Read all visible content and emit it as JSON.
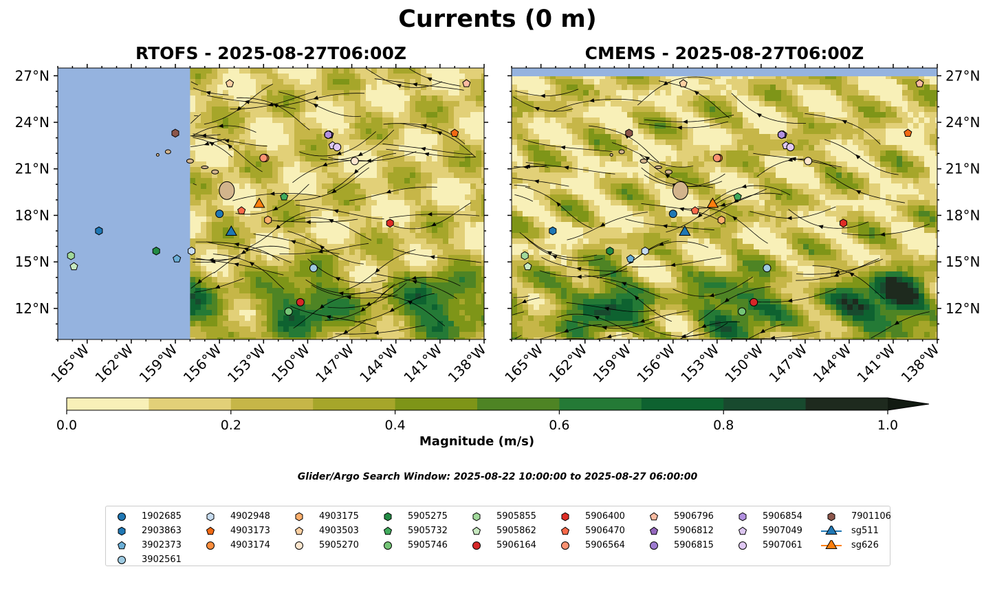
{
  "figure": {
    "title": "Currents (0 m)",
    "subtitle": "Glider/Argo Search Window: 2025-08-22 10:00:00 to 2025-08-27 06:00:00",
    "colorbar_label": "Magnitude (m/s)"
  },
  "chart_data": [
    {
      "type": "heatmap",
      "panel": "left",
      "title": "RTOFS - 2025-08-27T06:00Z",
      "xlabel": "",
      "ylabel": "",
      "xlim": [
        -167,
        -138
      ],
      "ylim": [
        10,
        27.5
      ],
      "xticks": [
        "165°W",
        "162°W",
        "159°W",
        "156°W",
        "153°W",
        "150°W",
        "147°W",
        "144°W",
        "141°W",
        "138°W"
      ],
      "yticks": [
        "12°N",
        "15°N",
        "18°N",
        "21°N",
        "24°N",
        "27°N"
      ],
      "note": "model domain begins at ~158°W; area west shown as no-data"
    },
    {
      "type": "heatmap",
      "panel": "right",
      "title": "CMEMS - 2025-08-27T06:00Z",
      "xlabel": "",
      "ylabel": "",
      "xlim": [
        -167,
        -138
      ],
      "ylim": [
        10,
        27.5
      ],
      "xticks": [
        "165°W",
        "162°W",
        "159°W",
        "156°W",
        "153°W",
        "150°W",
        "147°W",
        "144°W",
        "141°W",
        "138°W"
      ],
      "yticks": [
        "12°N",
        "15°N",
        "18°N",
        "21°N",
        "24°N",
        "27°N"
      ]
    }
  ],
  "colorbar": {
    "levels": [
      0.0,
      0.1,
      0.2,
      0.3,
      0.4,
      0.5,
      0.6,
      0.7,
      0.8,
      0.9,
      1.0
    ],
    "colors": [
      "#f8f0b8",
      "#e2d078",
      "#c6b648",
      "#a6a62a",
      "#7e9518",
      "#4e8424",
      "#247a36",
      "#0e6230",
      "#184a2e",
      "#1e2a1e"
    ],
    "tick_labels": [
      "0.0",
      "0.2",
      "0.4",
      "0.6",
      "0.8",
      "1.0"
    ],
    "ticks": [
      0.0,
      0.2,
      0.4,
      0.6,
      0.8,
      1.0
    ]
  },
  "floats": [
    {
      "id": "1902685",
      "marker": "circle",
      "color": "#1f77b4",
      "lon": -156.0,
      "lat": 18.1
    },
    {
      "id": "2903863",
      "marker": "hexagon",
      "color": "#1f77b4",
      "lon": -164.2,
      "lat": 17.0
    },
    {
      "id": "3902373",
      "marker": "pentagon",
      "color": "#6baed6",
      "lon": -158.9,
      "lat": 15.2
    },
    {
      "id": "3902561",
      "marker": "circle",
      "color": "#9ecae1",
      "lon": -149.6,
      "lat": 14.6
    },
    {
      "id": "4902948",
      "marker": "hexagon",
      "color": "#c6dbef",
      "lon": -157.9,
      "lat": 15.7
    },
    {
      "id": "4903173",
      "marker": "pentagon",
      "color": "#f16913",
      "lon": -140.0,
      "lat": 23.3
    },
    {
      "id": "4903174",
      "marker": "circle",
      "color": "#fd8d3c",
      "lon": -152.9,
      "lat": 21.7
    },
    {
      "id": "4903175",
      "marker": "hexagon",
      "color": "#fdae6b",
      "lon": -152.7,
      "lat": 17.7
    },
    {
      "id": "4903503",
      "marker": "pentagon",
      "color": "#fdd0a2",
      "lon": -155.3,
      "lat": 26.5
    },
    {
      "id": "5905270",
      "marker": "circle",
      "color": "#fee6ce",
      "lon": -146.8,
      "lat": 21.5
    },
    {
      "id": "5905275",
      "marker": "hexagon",
      "color": "#238b45",
      "lon": -160.3,
      "lat": 15.7
    },
    {
      "id": "5905732",
      "marker": "pentagon",
      "color": "#41ab5d",
      "lon": -151.6,
      "lat": 19.2
    },
    {
      "id": "5905746",
      "marker": "circle",
      "color": "#74c476",
      "lon": -151.3,
      "lat": 11.8
    },
    {
      "id": "5905855",
      "marker": "hexagon",
      "color": "#a1d99b",
      "lon": -166.1,
      "lat": 15.4
    },
    {
      "id": "5905862",
      "marker": "pentagon",
      "color": "#c7e9c0",
      "lon": -165.9,
      "lat": 14.7
    },
    {
      "id": "5906164",
      "marker": "circle",
      "color": "#d62728",
      "lon": -150.5,
      "lat": 12.4
    },
    {
      "id": "5906400",
      "marker": "hexagon",
      "color": "#de2d26",
      "lon": -144.4,
      "lat": 17.5
    },
    {
      "id": "5906470",
      "marker": "pentagon",
      "color": "#fb6a4a",
      "lon": -154.5,
      "lat": 18.3
    },
    {
      "id": "5906564",
      "marker": "circle",
      "color": "#fc9272",
      "lon": -153.0,
      "lat": 21.7
    },
    {
      "id": "5906796",
      "marker": "pentagon",
      "color": "#fcbba1",
      "lon": -139.2,
      "lat": 26.5
    },
    {
      "id": "5906812",
      "marker": "pentagon",
      "color": "#9467bd",
      "lon": -148.5,
      "lat": 23.2
    },
    {
      "id": "5906815",
      "marker": "circle",
      "color": "#9e7bd0",
      "lon": -148.6,
      "lat": 23.2
    },
    {
      "id": "5906854",
      "marker": "hexagon",
      "color": "#b290e0",
      "lon": -148.6,
      "lat": 23.2
    },
    {
      "id": "5907049",
      "marker": "pentagon",
      "color": "#dcc6f0",
      "lon": -148.3,
      "lat": 22.5
    },
    {
      "id": "5907061",
      "marker": "circle",
      "color": "#e0c8f4",
      "lon": -148.0,
      "lat": 22.4
    },
    {
      "id": "7901106",
      "marker": "hexagon",
      "color": "#8c564b",
      "lon": -159.0,
      "lat": 23.3
    }
  ],
  "gliders": [
    {
      "id": "sg511",
      "marker": "triangle",
      "color": "#1f77b4",
      "line": "#1f77b4",
      "lon": -155.2,
      "lat": 17.0
    },
    {
      "id": "sg626",
      "marker": "triangle",
      "color": "#ff7f0e",
      "line": "#ff7f0e",
      "lon": -153.3,
      "lat": 18.8
    }
  ]
}
